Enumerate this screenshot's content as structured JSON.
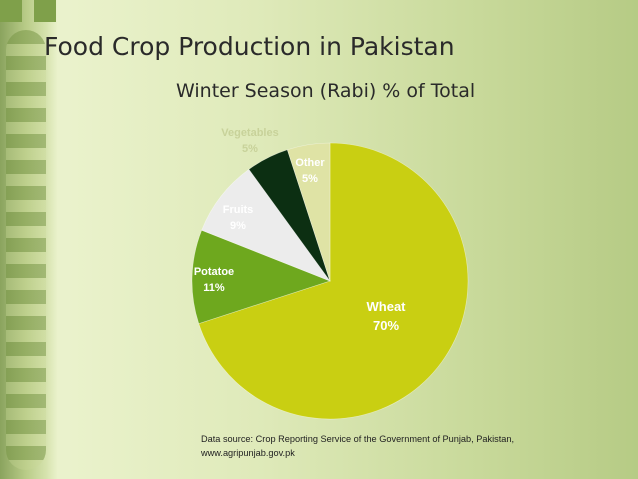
{
  "slide": {
    "title": "Food Crop Production in Pakistan",
    "source_note": "Data source: Crop Reporting Service of the Government of Punjab, Pakistan, www.agripunjab.gov.pk"
  },
  "chart_data": {
    "type": "pie",
    "title": "Winter Season (Rabi) % of Total",
    "unit": "%",
    "slices": [
      {
        "label": "Wheat",
        "value": 70,
        "display": "70%",
        "color": "#c9cf12"
      },
      {
        "label": "Potatoe",
        "value": 11,
        "display": "11%",
        "color": "#6ea81e"
      },
      {
        "label": "Fruits",
        "value": 9,
        "display": "9%",
        "color": "#ececec"
      },
      {
        "label": "Vegetables",
        "value": 5,
        "display": "5%",
        "color": "#0c2f12"
      },
      {
        "label": "Other",
        "value": 5,
        "display": "5%",
        "color": "#dfe3a5"
      }
    ],
    "label_colors": {
      "light": "#ffffff",
      "dark": "#22302a"
    }
  }
}
